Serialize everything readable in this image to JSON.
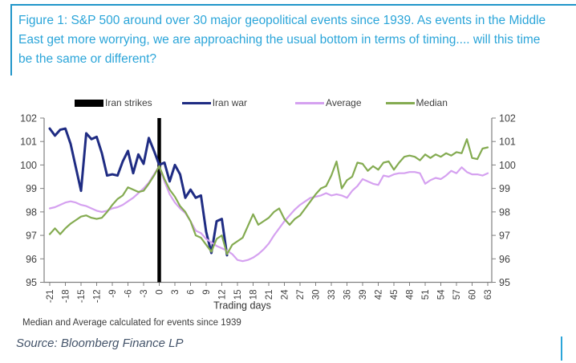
{
  "title": "Figure 1: S&P 500 around over 30 major geopolitical events since 1939. As events in the Middle East get more worrying, we are approaching the usual bottom in terms of timing.... will this time be the same or different?",
  "legend": [
    {
      "label": "Iran strikes",
      "color": "#000000",
      "style": "bar"
    },
    {
      "label": "Iran war",
      "color": "#1F2C83",
      "style": "line"
    },
    {
      "label": "Average",
      "color": "#D5A1F0",
      "style": "line"
    },
    {
      "label": "Median",
      "color": "#84AB51",
      "style": "line"
    }
  ],
  "chart_data": {
    "type": "line",
    "title": "",
    "xlabel": "Trading days",
    "ylabel": "",
    "xlim": [
      -21,
      63
    ],
    "ylim": [
      95,
      102
    ],
    "grid": false,
    "legend_position": "top",
    "x_ticks": [
      -21,
      -18,
      -15,
      -12,
      -9,
      -6,
      -3,
      0,
      3,
      6,
      9,
      12,
      15,
      18,
      21,
      24,
      27,
      30,
      33,
      36,
      39,
      42,
      45,
      48,
      51,
      54,
      57,
      60,
      63
    ],
    "y_ticks": [
      95,
      96,
      97,
      98,
      99,
      100,
      101,
      102
    ],
    "y_axis_sides": [
      "left",
      "right"
    ],
    "event_marker": {
      "label": "Iran strikes",
      "x": 0,
      "color": "#000000"
    },
    "series": [
      {
        "name": "Iran war",
        "color": "#1F2C83",
        "width": 3,
        "x_start": -21,
        "values": [
          101.55,
          101.25,
          101.5,
          101.55,
          100.9,
          99.9,
          98.9,
          101.35,
          101.1,
          101.2,
          100.5,
          99.55,
          99.6,
          99.55,
          100.15,
          100.6,
          99.65,
          100.45,
          100.05,
          101.15,
          100.6,
          100.0,
          100.1,
          99.3,
          100.0,
          99.6,
          98.6,
          98.95,
          98.6,
          98.7,
          97.15,
          96.25,
          97.6,
          97.7,
          96.15
        ]
      },
      {
        "name": "Average",
        "color": "#D5A1F0",
        "width": 2.2,
        "x_start": -21,
        "values": [
          98.15,
          98.2,
          98.3,
          98.4,
          98.45,
          98.4,
          98.3,
          98.25,
          98.15,
          98.05,
          98.0,
          98.05,
          98.15,
          98.2,
          98.3,
          98.45,
          98.6,
          98.8,
          99.0,
          99.25,
          99.6,
          99.95,
          99.3,
          98.75,
          98.4,
          98.15,
          97.95,
          97.6,
          97.2,
          97.1,
          96.85,
          96.7,
          96.55,
          96.45,
          96.35,
          96.2,
          95.95,
          95.9,
          95.95,
          96.05,
          96.2,
          96.4,
          96.65,
          97.0,
          97.3,
          97.6,
          97.85,
          98.1,
          98.3,
          98.45,
          98.6,
          98.65,
          98.7,
          98.8,
          98.7,
          98.75,
          98.7,
          98.6,
          98.9,
          99.1,
          99.4,
          99.3,
          99.2,
          99.15,
          99.55,
          99.5,
          99.6,
          99.65,
          99.65,
          99.7,
          99.7,
          99.65,
          99.2,
          99.35,
          99.45,
          99.4,
          99.55,
          99.75,
          99.65,
          99.9,
          99.7,
          99.6,
          99.6,
          99.55,
          99.65
        ]
      },
      {
        "name": "Median",
        "color": "#84AB51",
        "width": 2.2,
        "x_start": -21,
        "values": [
          97.05,
          97.3,
          97.05,
          97.3,
          97.5,
          97.65,
          97.8,
          97.85,
          97.75,
          97.7,
          97.75,
          98.0,
          98.3,
          98.55,
          98.7,
          99.05,
          98.95,
          98.85,
          98.9,
          99.2,
          99.55,
          99.95,
          99.4,
          98.95,
          98.65,
          98.25,
          98.0,
          97.6,
          97.0,
          96.9,
          96.6,
          96.3,
          96.85,
          97.0,
          96.2,
          96.6,
          96.75,
          96.9,
          97.4,
          97.9,
          97.45,
          97.6,
          97.75,
          98.0,
          98.15,
          97.7,
          97.45,
          97.7,
          97.85,
          98.15,
          98.45,
          98.75,
          99.0,
          99.1,
          99.55,
          100.15,
          99.0,
          99.35,
          99.5,
          100.1,
          100.05,
          99.75,
          99.95,
          99.8,
          100.1,
          100.15,
          99.8,
          100.1,
          100.35,
          100.4,
          100.35,
          100.2,
          100.45,
          100.3,
          100.45,
          100.35,
          100.5,
          100.4,
          100.55,
          100.5,
          101.1,
          100.3,
          100.25,
          100.7,
          100.75
        ]
      }
    ]
  },
  "footnote": "Median and Average calculated for events since 1939",
  "source": "Source: Bloomberg Finance LP",
  "colors": {
    "accent_teal": "#2BA5D9",
    "axis_line": "#808080",
    "axis_text": "#404040",
    "source_text": "#44546A"
  }
}
